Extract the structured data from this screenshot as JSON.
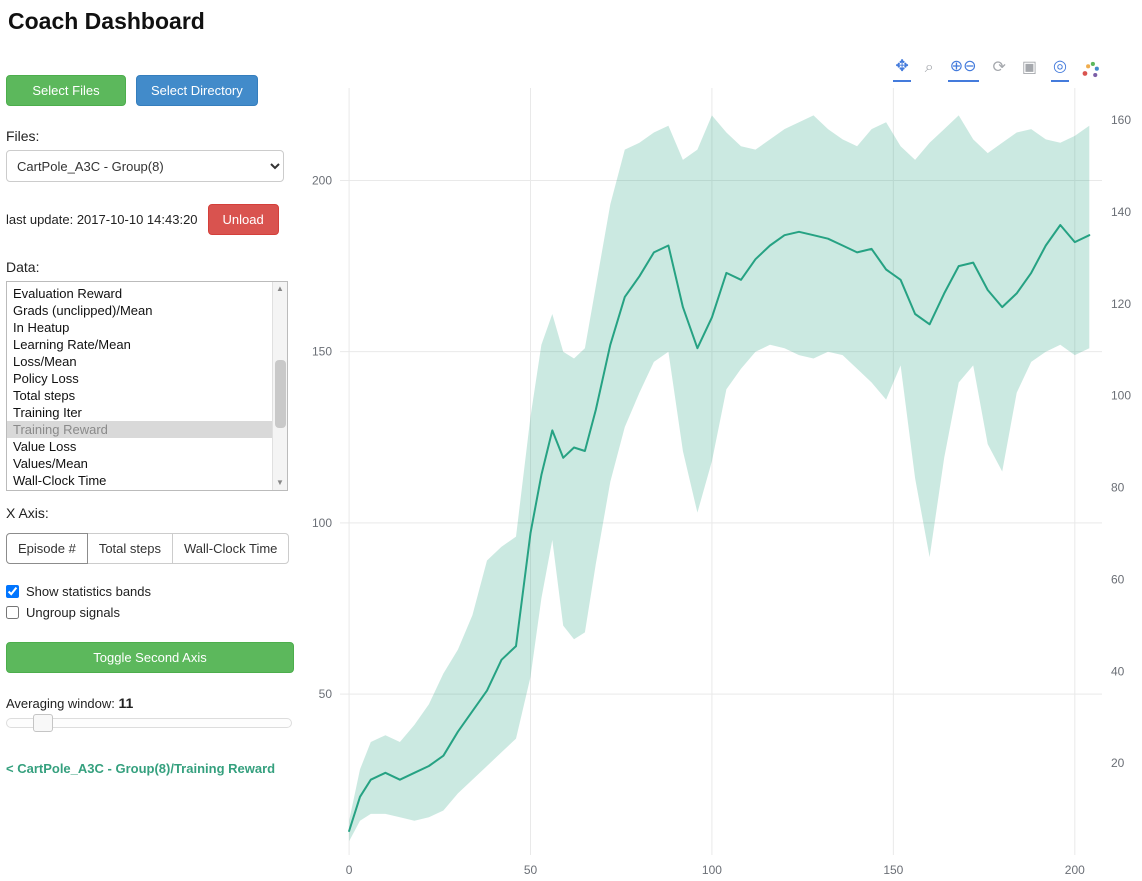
{
  "title": "Coach Dashboard",
  "sidebar": {
    "select_files": "Select Files",
    "select_directory": "Select Directory",
    "files_label": "Files:",
    "files_dropdown": "CartPole_A3C - Group(8)",
    "last_update": "last update: 2017-10-10 14:43:20",
    "unload": "Unload",
    "data_label": "Data:",
    "data_items": [
      "Evaluation Reward",
      "Grads (unclipped)/Mean",
      "In Heatup",
      "Learning Rate/Mean",
      "Loss/Mean",
      "Policy Loss",
      "Total steps",
      "Training Iter",
      "Training Reward",
      "Value Loss",
      "Values/Mean",
      "Wall-Clock Time"
    ],
    "selected_item": "Training Reward",
    "xaxis_label": "X Axis:",
    "xaxis_buttons": [
      "Episode #",
      "Total steps",
      "Wall-Clock Time"
    ],
    "checkbox_bands_label": "Show statistics bands",
    "checkbox_ungroup_label": "Ungroup signals",
    "toggle_second_axis": "Toggle Second Axis",
    "averaging_label": "Averaging window:",
    "averaging_value": "11",
    "breadcrumb": "< CartPole_A3C - Group(8)/Training Reward"
  },
  "modebar": {
    "icons": [
      {
        "name": "pan",
        "glyph": "✥"
      },
      {
        "name": "box-zoom",
        "glyph": "⌕"
      },
      {
        "name": "zoom-in-out",
        "glyph": "⊕⊖"
      },
      {
        "name": "reset-axes",
        "glyph": "⟳"
      },
      {
        "name": "save",
        "glyph": "▣"
      },
      {
        "name": "spikelines",
        "glyph": "◎"
      }
    ]
  },
  "chart_data": {
    "type": "line",
    "title": "",
    "xlabel": "",
    "ylabel": "",
    "series_name": "CartPole_A3C - Group(8)/Training Reward",
    "band_name": "statistics band (±std)",
    "xlim": [
      -2.5,
      207.5
    ],
    "ylim_left": [
      3,
      227
    ],
    "ylim_right": [
      0,
      167
    ],
    "xticks": [
      0,
      50,
      100,
      150,
      200
    ],
    "yticks_left": [
      50,
      100,
      150,
      200
    ],
    "yticks_right": [
      20,
      40,
      60,
      80,
      100,
      120,
      140,
      160
    ],
    "grid": true,
    "legend_position": "none",
    "colors": {
      "line": "#26a283",
      "band": "#26a283",
      "band_opacity": 0.24,
      "grid": "#e9e9e9",
      "tick_text": "#6b6f76"
    },
    "x": [
      0,
      3,
      6,
      10,
      14,
      18,
      22,
      26,
      30,
      34,
      38,
      42,
      46,
      50,
      53,
      56,
      59,
      62,
      65,
      68,
      72,
      76,
      80,
      84,
      88,
      92,
      96,
      100,
      104,
      108,
      112,
      116,
      120,
      124,
      128,
      132,
      136,
      140,
      144,
      148,
      152,
      156,
      160,
      164,
      168,
      172,
      176,
      180,
      184,
      188,
      192,
      196,
      200,
      204
    ],
    "mean": [
      10,
      20,
      25,
      27,
      25,
      27,
      29,
      32,
      39,
      45,
      51,
      60,
      64,
      97,
      114,
      127,
      119,
      122,
      121,
      133,
      152,
      166,
      172,
      179,
      181,
      163,
      151,
      160,
      173,
      171,
      177,
      181,
      184,
      185,
      184,
      183,
      181,
      179,
      180,
      174,
      171,
      161,
      158,
      167,
      175,
      176,
      168,
      163,
      167,
      173,
      181,
      187,
      182,
      184
    ],
    "band_upper": [
      13,
      28,
      36,
      38,
      36,
      41,
      47,
      56,
      63,
      73,
      89,
      93,
      96,
      131,
      152,
      161,
      150,
      148,
      151,
      169,
      193,
      209,
      211,
      214,
      216,
      206,
      209,
      219,
      214,
      210,
      209,
      212,
      215,
      217,
      219,
      215,
      212,
      210,
      215,
      217,
      210,
      206,
      211,
      215,
      219,
      212,
      208,
      211,
      214,
      215,
      212,
      211,
      213,
      216
    ],
    "band_lower": [
      7,
      13,
      15,
      15,
      14,
      13,
      14,
      16,
      21,
      25,
      29,
      33,
      37,
      55,
      78,
      95,
      70,
      66,
      68,
      88,
      112,
      128,
      138,
      147,
      150,
      121,
      103,
      118,
      139,
      145,
      150,
      152,
      151,
      149,
      148,
      150,
      149,
      145,
      141,
      136,
      146,
      113,
      90,
      119,
      141,
      146,
      123,
      115,
      138,
      147,
      150,
      152,
      149,
      151
    ]
  }
}
